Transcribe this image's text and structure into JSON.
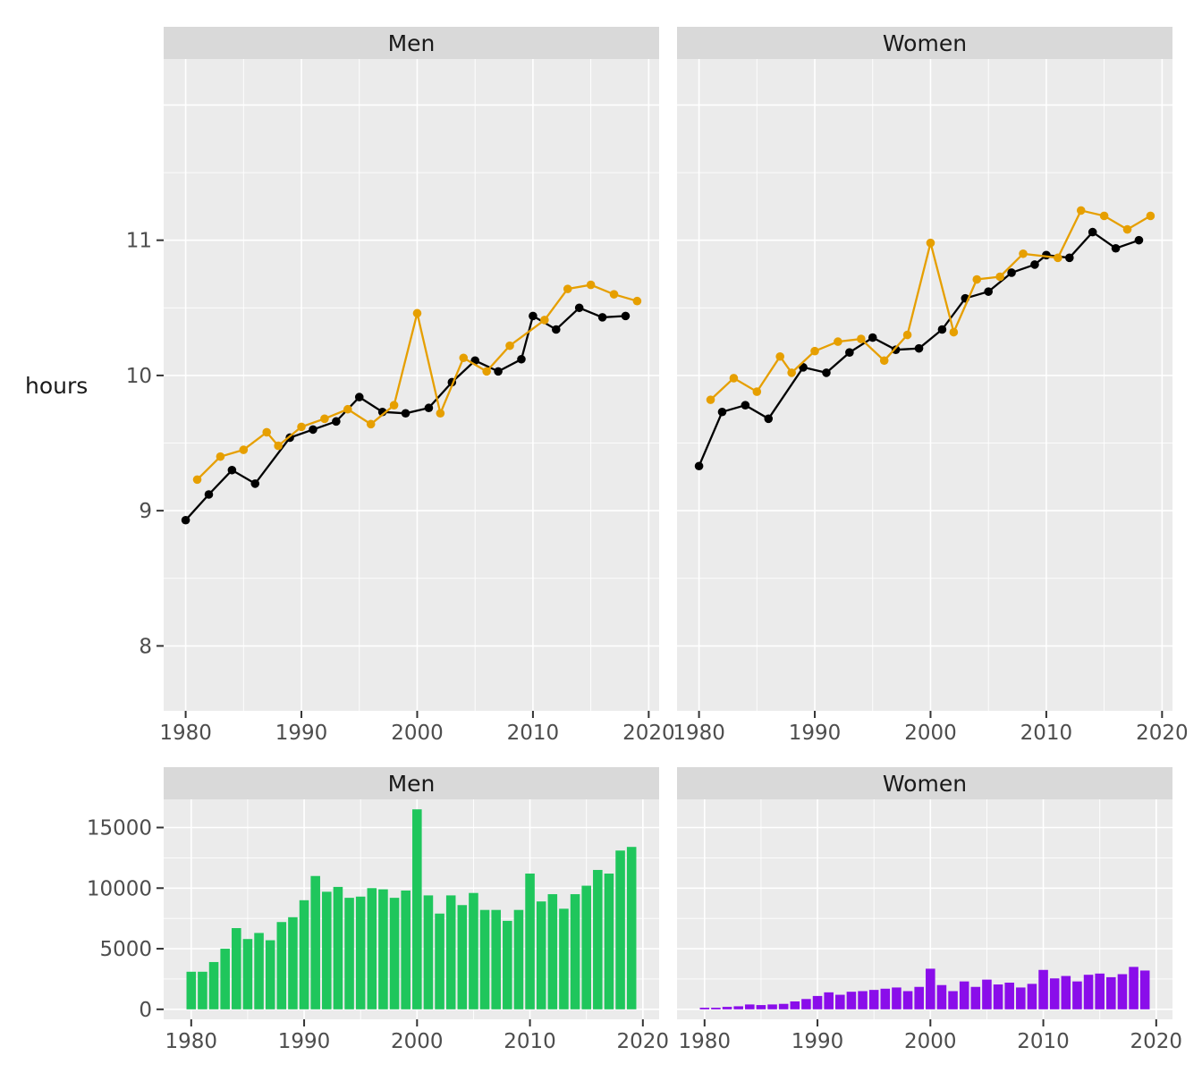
{
  "figure": {
    "y_axis_title": "hours",
    "background": "#ffffff",
    "panel_bg": "#ebebeb",
    "strip_bg": "#d9d9d9",
    "grid_color": "#ffffff",
    "axis_text_color": "#4d4d4d",
    "tick_mark_color": "#333333",
    "facet_row_titles": [
      "Men",
      "Women"
    ]
  },
  "chart_data": [
    {
      "type": "line",
      "title": "Men",
      "ylabel": "hours",
      "xlim": [
        1978.1,
        2020.9
      ],
      "ylim": [
        7.52,
        12.34
      ],
      "x_ticks": [
        1980,
        1990,
        2000,
        2010,
        2020
      ],
      "y_ticks": [
        8,
        9,
        10,
        11
      ],
      "x_grid_minor": [
        1985,
        1995,
        2005,
        2015
      ],
      "y_grid_major": [
        8,
        9,
        10,
        11,
        12
      ],
      "y_grid_minor": [
        7.5,
        8.5,
        9.5,
        10.5,
        11.5
      ],
      "grid": true,
      "legend": "none",
      "series": [
        {
          "name": "black",
          "color": "#000000",
          "points": [
            [
              1980,
              8.93
            ],
            [
              1982,
              9.12
            ],
            [
              1984,
              9.3
            ],
            [
              1986,
              9.2
            ],
            [
              1989,
              9.54
            ],
            [
              1991,
              9.6
            ],
            [
              1993,
              9.66
            ],
            [
              1995,
              9.84
            ],
            [
              1997,
              9.73
            ],
            [
              1999,
              9.72
            ],
            [
              2001,
              9.76
            ],
            [
              2003,
              9.95
            ],
            [
              2005,
              10.11
            ],
            [
              2007,
              10.03
            ],
            [
              2009,
              10.12
            ],
            [
              2010,
              10.44
            ],
            [
              2012,
              10.34
            ],
            [
              2014,
              10.5
            ],
            [
              2016,
              10.43
            ],
            [
              2018,
              10.44
            ]
          ]
        },
        {
          "name": "orange",
          "color": "#e69f00",
          "points": [
            [
              1981,
              9.23
            ],
            [
              1983,
              9.4
            ],
            [
              1985,
              9.45
            ],
            [
              1987,
              9.58
            ],
            [
              1988,
              9.48
            ],
            [
              1990,
              9.62
            ],
            [
              1992,
              9.68
            ],
            [
              1994,
              9.75
            ],
            [
              1996,
              9.64
            ],
            [
              1998,
              9.78
            ],
            [
              2000,
              10.46
            ],
            [
              2002,
              9.72
            ],
            [
              2004,
              10.13
            ],
            [
              2006,
              10.03
            ],
            [
              2008,
              10.22
            ],
            [
              2011,
              10.41
            ],
            [
              2013,
              10.64
            ],
            [
              2015,
              10.67
            ],
            [
              2017,
              10.6
            ],
            [
              2019,
              10.55
            ]
          ]
        }
      ]
    },
    {
      "type": "line",
      "title": "Women",
      "ylabel": "hours",
      "xlim": [
        1978.1,
        2020.9
      ],
      "ylim": [
        7.52,
        12.34
      ],
      "x_ticks": [
        1980,
        1990,
        2000,
        2010,
        2020
      ],
      "y_ticks": [],
      "x_grid_minor": [
        1985,
        1995,
        2005,
        2015
      ],
      "y_grid_major": [
        8,
        9,
        10,
        11,
        12
      ],
      "y_grid_minor": [
        7.5,
        8.5,
        9.5,
        10.5,
        11.5
      ],
      "grid": true,
      "legend": "none",
      "series": [
        {
          "name": "black",
          "color": "#000000",
          "points": [
            [
              1980,
              9.33
            ],
            [
              1982,
              9.73
            ],
            [
              1984,
              9.78
            ],
            [
              1986,
              9.68
            ],
            [
              1989,
              10.06
            ],
            [
              1991,
              10.02
            ],
            [
              1993,
              10.17
            ],
            [
              1995,
              10.28
            ],
            [
              1997,
              10.19
            ],
            [
              1999,
              10.2
            ],
            [
              2001,
              10.34
            ],
            [
              2003,
              10.57
            ],
            [
              2005,
              10.62
            ],
            [
              2007,
              10.76
            ],
            [
              2009,
              10.82
            ],
            [
              2010,
              10.89
            ],
            [
              2012,
              10.87
            ],
            [
              2014,
              11.06
            ],
            [
              2016,
              10.94
            ],
            [
              2018,
              11.0
            ]
          ]
        },
        {
          "name": "orange",
          "color": "#e69f00",
          "points": [
            [
              1981,
              9.82
            ],
            [
              1983,
              9.98
            ],
            [
              1985,
              9.88
            ],
            [
              1987,
              10.14
            ],
            [
              1988,
              10.02
            ],
            [
              1990,
              10.18
            ],
            [
              1992,
              10.25
            ],
            [
              1994,
              10.27
            ],
            [
              1996,
              10.11
            ],
            [
              1998,
              10.3
            ],
            [
              2000,
              10.98
            ],
            [
              2002,
              10.32
            ],
            [
              2004,
              10.71
            ],
            [
              2006,
              10.73
            ],
            [
              2008,
              10.9
            ],
            [
              2011,
              10.87
            ],
            [
              2013,
              11.22
            ],
            [
              2015,
              11.18
            ],
            [
              2017,
              11.08
            ],
            [
              2019,
              11.18
            ]
          ]
        }
      ]
    },
    {
      "type": "bar",
      "title": "Men",
      "color": "#1fc65c",
      "xlim": [
        1977.56,
        2021.44
      ],
      "ylim": [
        -825,
        17325
      ],
      "x_ticks": [
        1980,
        1990,
        2000,
        2010,
        2020
      ],
      "y_ticks": [
        0,
        5000,
        10000,
        15000
      ],
      "x_grid_minor": [
        1985,
        1995,
        2005,
        2015
      ],
      "y_grid_major": [
        0,
        5000,
        10000,
        15000
      ],
      "y_grid_minor": [
        2500,
        7500,
        12500
      ],
      "grid": true,
      "bar_width": 0.9,
      "x": [
        1980,
        1981,
        1982,
        1983,
        1984,
        1985,
        1986,
        1987,
        1988,
        1989,
        1990,
        1991,
        1992,
        1993,
        1994,
        1995,
        1996,
        1997,
        1998,
        1999,
        2000,
        2001,
        2002,
        2003,
        2004,
        2005,
        2006,
        2007,
        2008,
        2009,
        2010,
        2011,
        2012,
        2013,
        2014,
        2015,
        2016,
        2017,
        2018,
        2019
      ],
      "values": [
        3100,
        3100,
        3900,
        5000,
        6700,
        5800,
        6300,
        5700,
        7200,
        7600,
        9000,
        11000,
        9700,
        10100,
        9200,
        9300,
        10000,
        9900,
        9200,
        9800,
        16500,
        9400,
        7900,
        9400,
        8600,
        9600,
        8200,
        8200,
        7300,
        8200,
        11200,
        8900,
        9500,
        8300,
        9500,
        10200,
        11500,
        11200,
        13100,
        13400
      ]
    },
    {
      "type": "bar",
      "title": "Women",
      "color": "#8a0dea",
      "xlim": [
        1977.56,
        2021.44
      ],
      "ylim": [
        -825,
        17325
      ],
      "x_ticks": [
        1980,
        1990,
        2000,
        2010,
        2020
      ],
      "y_ticks": [],
      "x_grid_minor": [
        1985,
        1995,
        2005,
        2015
      ],
      "y_grid_major": [
        0,
        5000,
        10000,
        15000
      ],
      "y_grid_minor": [
        2500,
        7500,
        12500
      ],
      "grid": true,
      "bar_width": 0.9,
      "x": [
        1980,
        1981,
        1982,
        1983,
        1984,
        1985,
        1986,
        1987,
        1988,
        1989,
        1990,
        1991,
        1992,
        1993,
        1994,
        1995,
        1996,
        1997,
        1998,
        1999,
        2000,
        2001,
        2002,
        2003,
        2004,
        2005,
        2006,
        2007,
        2008,
        2009,
        2010,
        2011,
        2012,
        2013,
        2014,
        2015,
        2016,
        2017,
        2018,
        2019
      ],
      "values": [
        130,
        130,
        200,
        250,
        400,
        350,
        400,
        450,
        650,
        850,
        1100,
        1400,
        1200,
        1450,
        1500,
        1600,
        1700,
        1800,
        1500,
        1850,
        3350,
        2000,
        1500,
        2300,
        1850,
        2450,
        2050,
        2200,
        1800,
        2100,
        3250,
        2550,
        2750,
        2300,
        2850,
        2950,
        2650,
        2900,
        3500,
        3200
      ]
    }
  ]
}
